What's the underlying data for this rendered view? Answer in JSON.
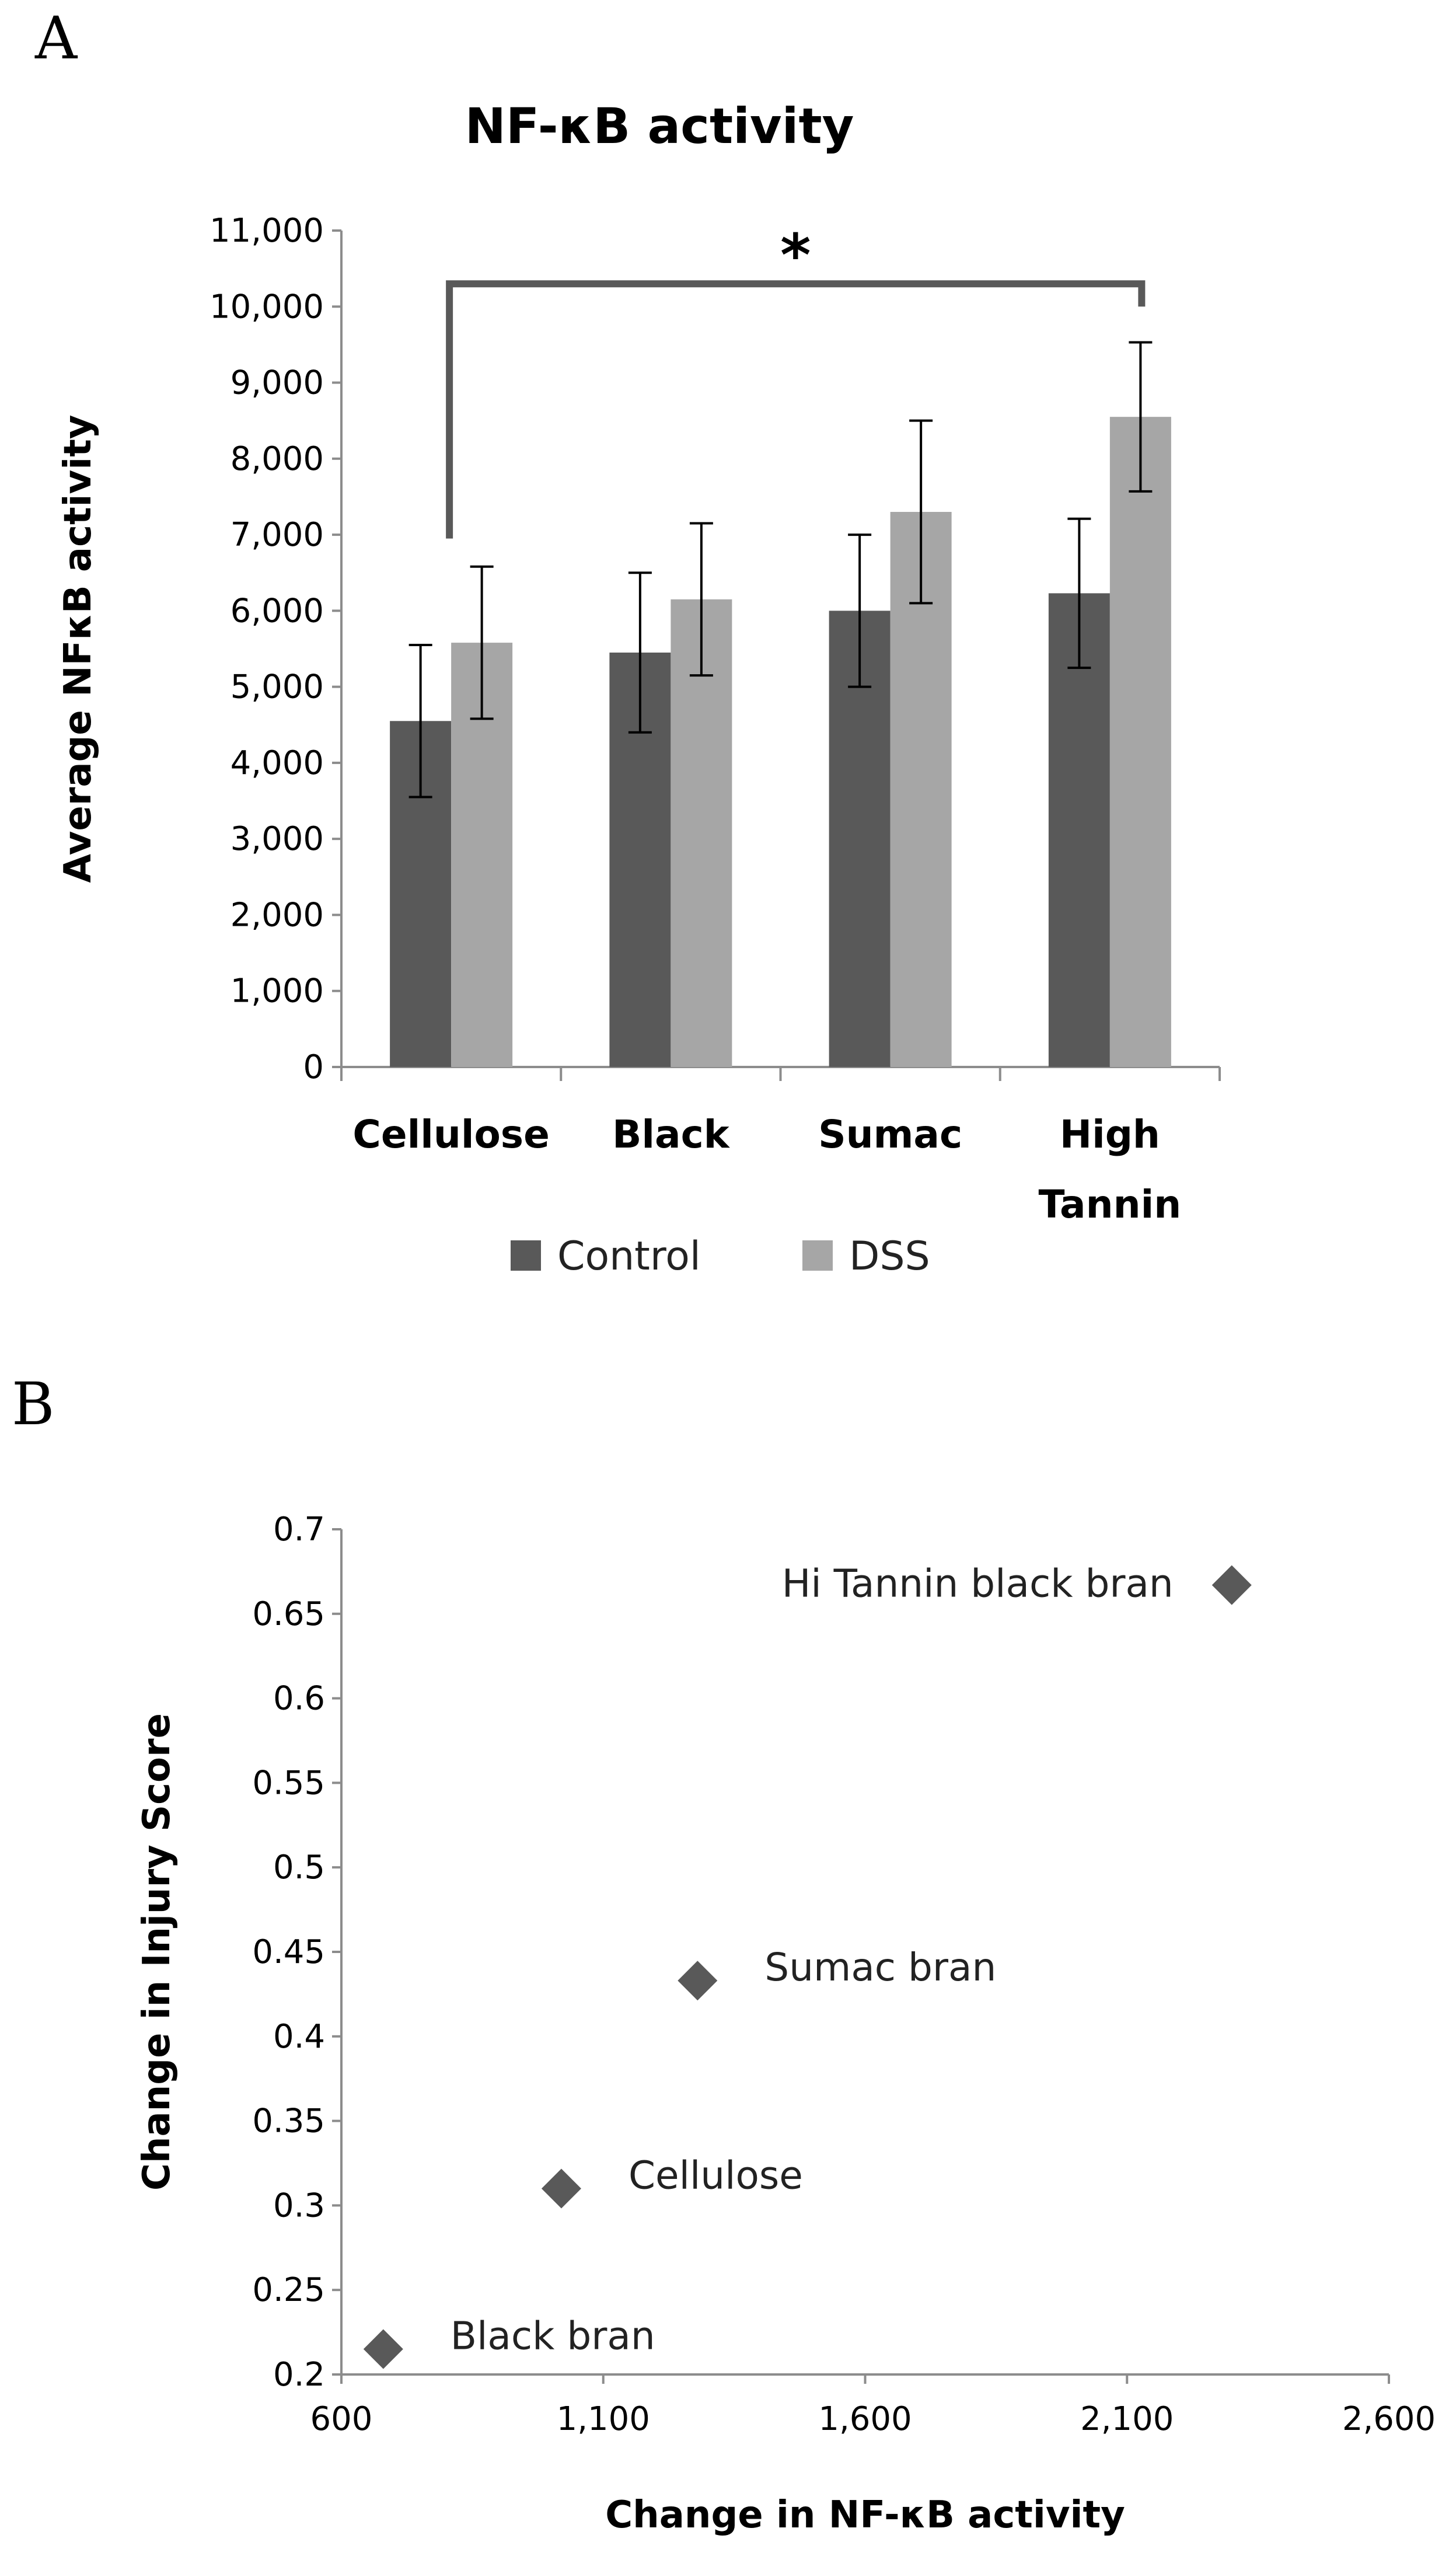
{
  "panels": {
    "a": "A",
    "b": "B"
  },
  "chart_data": [
    {
      "type": "bar",
      "title": "NF-κB activity",
      "xlabel": "",
      "ylabel": "Average NFκB activity",
      "categories": [
        [
          "Cellulose"
        ],
        [
          "Black"
        ],
        [
          "Sumac"
        ],
        [
          "High",
          "Tannin"
        ]
      ],
      "ylim": [
        0,
        11000
      ],
      "yticks": [
        0,
        1000,
        2000,
        3000,
        4000,
        5000,
        6000,
        7000,
        8000,
        9000,
        10000,
        11000
      ],
      "yticklabels": [
        "0",
        "1,000",
        "2,000",
        "3,000",
        "4,000",
        "5,000",
        "6,000",
        "7,000",
        "8,000",
        "9,000",
        "10,000",
        "11,000"
      ],
      "series": [
        {
          "name": "Control",
          "color": "#595959",
          "values": [
            4550,
            5450,
            6000,
            6230
          ],
          "errors": [
            1000,
            1050,
            1000,
            980
          ]
        },
        {
          "name": "DSS",
          "color": "#a6a6a6",
          "values": [
            5580,
            6150,
            7300,
            8550
          ],
          "errors": [
            1000,
            1000,
            1200,
            980
          ]
        }
      ],
      "significance": {
        "from": "Cellulose",
        "to": "High Tannin",
        "label": "*"
      },
      "legend_position": "bottom",
      "grid": false
    },
    {
      "type": "scatter",
      "xlabel": "Change in NF-κB activity",
      "ylabel": "Change in Injury Score",
      "xlim": [
        600,
        2600
      ],
      "ylim": [
        0.2,
        0.7
      ],
      "xticks": [
        600,
        1100,
        1600,
        2100,
        2600
      ],
      "xticklabels": [
        "600",
        "1,100",
        "1,600",
        "2,100",
        "2,600"
      ],
      "yticks": [
        0.2,
        0.25,
        0.3,
        0.35,
        0.4,
        0.45,
        0.5,
        0.55,
        0.6,
        0.65,
        0.7
      ],
      "yticklabels": [
        "0.2",
        "0.25",
        "0.3",
        "0.35",
        "0.4",
        "0.45",
        "0.5",
        "0.55",
        "0.6",
        "0.65",
        "0.7"
      ],
      "color": "#595959",
      "points": [
        {
          "label": "Hi Tannin black bran",
          "x": 2300,
          "y": 0.667,
          "label_side": "left"
        },
        {
          "label": "Sumac bran",
          "x": 1280,
          "y": 0.433,
          "label_side": "right"
        },
        {
          "label": "Cellulose",
          "x": 1020,
          "y": 0.31,
          "label_side": "right"
        },
        {
          "label": "Black bran",
          "x": 680,
          "y": 0.215,
          "label_side": "right"
        }
      ],
      "grid": false
    }
  ]
}
